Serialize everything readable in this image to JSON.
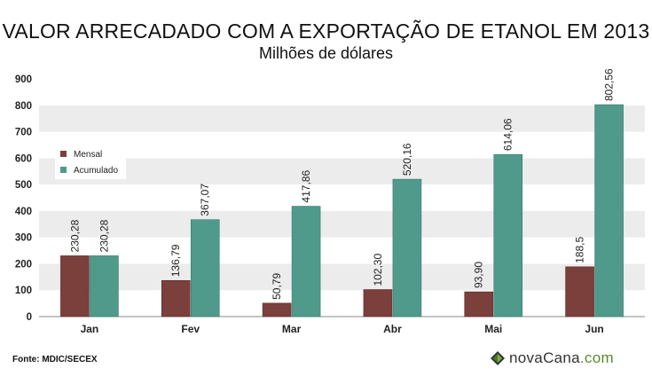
{
  "chart_data": {
    "type": "bar",
    "title": "VALOR ARRECADADO COM A EXPORTAÇÃO DE ETANOL EM 2013",
    "subtitle": "Milhões de dólares",
    "categories": [
      "Jan",
      "Fev",
      "Mar",
      "Abr",
      "Mai",
      "Jun"
    ],
    "series": [
      {
        "name": "Mensal",
        "values": [
          230.28,
          136.79,
          50.79,
          102.3,
          93.9,
          188.5
        ],
        "labels": [
          "230,28",
          "136,79",
          "50,79",
          "102,30",
          "93,90",
          "188,5"
        ],
        "color": "#7b3f3c"
      },
      {
        "name": "Acumulado",
        "values": [
          230.28,
          367.07,
          417.86,
          520.16,
          614.06,
          802.56
        ],
        "labels": [
          "230,28",
          "367,07",
          "417,86",
          "520,16",
          "614,06",
          "802,56"
        ],
        "color": "#4f9a8a"
      }
    ],
    "ylim": [
      0,
      900
    ],
    "yticks": [
      0,
      100,
      200,
      300,
      400,
      500,
      600,
      700,
      800,
      900
    ],
    "grid": "alternating horizontal bands",
    "legend": "top-left"
  },
  "footer": {
    "source": "Fonte: MDIC/SECEX",
    "brand_main": "novaCana",
    "brand_suffix": ".com"
  }
}
